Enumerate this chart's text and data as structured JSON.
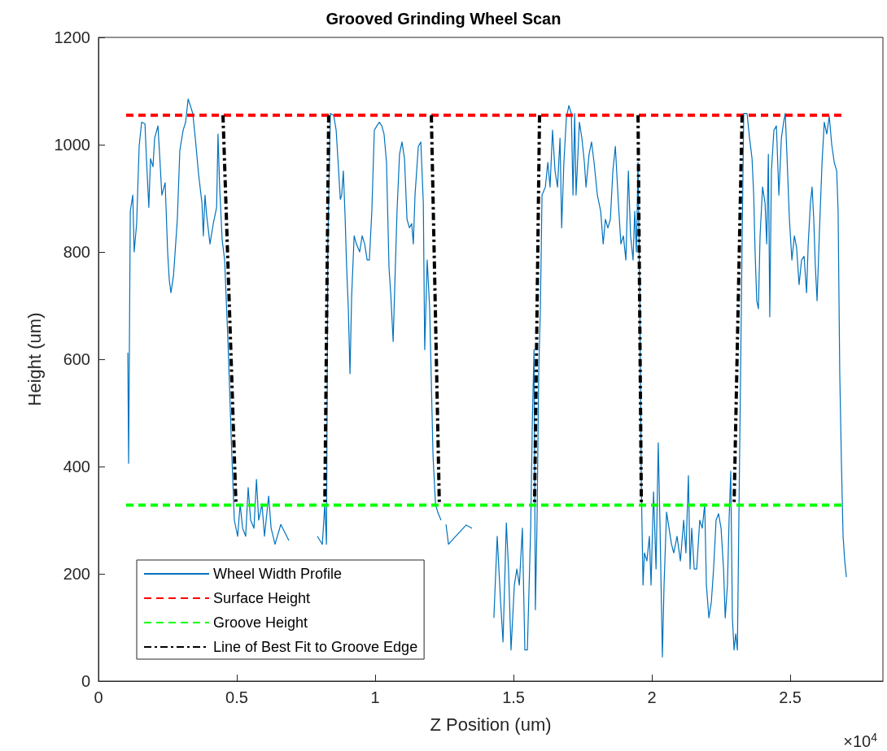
{
  "chart_data": {
    "type": "line",
    "title": "Grooved Grinding Wheel Scan",
    "xlabel": "Z Position (um)",
    "ylabel": "Height (um)",
    "annotations": [
      "×10$^{4}$"
    ],
    "xlim": [
      0,
      2.835
    ],
    "xticks": [
      0,
      0.5,
      1,
      1.5,
      2,
      2.5
    ],
    "ylim": [
      0,
      1200
    ],
    "yticks": [
      0,
      200,
      400,
      600,
      800,
      1000,
      1200
    ],
    "grid": false,
    "legend": "bottom left",
    "marker": "none",
    "series": [
      {
        "name": "Wheel Width Profile",
        "color": "#0072bd",
        "line_style": "solid",
        "x": [
          0.106,
          0.109,
          0.115,
          0.124,
          0.129,
          0.138,
          0.147,
          0.156,
          0.168,
          0.174,
          0.182,
          0.188,
          0.197,
          0.203,
          0.215,
          0.221,
          0.229,
          0.241,
          0.25,
          0.256,
          0.262,
          0.271,
          0.279,
          0.285,
          0.294,
          0.306,
          0.315,
          0.324,
          0.332,
          0.341,
          0.35,
          0.362,
          0.374,
          0.379,
          0.385,
          0.391,
          0.403,
          0.415,
          0.427,
          0.432,
          0.438,
          0.447,
          0.456,
          0.468,
          0.482,
          0.491,
          0.503,
          0.512,
          0.521,
          0.532,
          0.541,
          0.55,
          0.562,
          0.571,
          0.579,
          0.591,
          0.6,
          0.615,
          0.624,
          0.638,
          0.659,
          0.688,
          0.718,
          0.762,
          0.791,
          0.809,
          0.818,
          0.824,
          0.829,
          0.838,
          0.85,
          0.859,
          0.868,
          0.874,
          0.879,
          0.885,
          0.891,
          0.897,
          0.903,
          0.909,
          0.915,
          0.924,
          0.932,
          0.944,
          0.953,
          0.962,
          0.971,
          0.979,
          0.988,
          0.997,
          1.006,
          1.015,
          1.024,
          1.032,
          1.041,
          1.05,
          1.056,
          1.065,
          1.071,
          1.079,
          1.088,
          1.097,
          1.106,
          1.115,
          1.124,
          1.132,
          1.138,
          1.144,
          1.156,
          1.165,
          1.174,
          1.179,
          1.188,
          1.197,
          1.209,
          1.218,
          1.226,
          1.238,
          1.247,
          1.256,
          1.265,
          1.291,
          1.329,
          1.35,
          1.379,
          1.418,
          1.429,
          1.441,
          1.453,
          1.462,
          1.474,
          1.482,
          1.491,
          1.503,
          1.512,
          1.521,
          1.532,
          1.541,
          1.55,
          1.562,
          1.568,
          1.574,
          1.579,
          1.585,
          1.591,
          1.597,
          1.603,
          1.615,
          1.624,
          1.632,
          1.641,
          1.65,
          1.659,
          1.668,
          1.674,
          1.682,
          1.691,
          1.7,
          1.709,
          1.715,
          1.721,
          1.726,
          1.738,
          1.747,
          1.756,
          1.762,
          1.773,
          1.782,
          1.791,
          1.803,
          1.815,
          1.824,
          1.832,
          1.841,
          1.85,
          1.859,
          1.868,
          1.879,
          1.888,
          1.897,
          1.906,
          1.915,
          1.923,
          1.932,
          1.938,
          1.944,
          1.95,
          1.956,
          1.962,
          1.968,
          1.973,
          1.982,
          1.991,
          1.997,
          2.006,
          2.015,
          2.023,
          2.029,
          2.038,
          2.044,
          2.053,
          2.062,
          2.071,
          2.079,
          2.091,
          2.103,
          2.115,
          2.123,
          2.132,
          2.138,
          2.144,
          2.153,
          2.162,
          2.173,
          2.182,
          2.191,
          2.197,
          2.206,
          2.215,
          2.223,
          2.232,
          2.241,
          2.25,
          2.259,
          2.265,
          2.273,
          2.279,
          2.285,
          2.291,
          2.297,
          2.303,
          2.309,
          2.315,
          2.326,
          2.332,
          2.344,
          2.353,
          2.362,
          2.368,
          2.373,
          2.379,
          2.385,
          2.391,
          2.4,
          2.409,
          2.415,
          2.421,
          2.426,
          2.432,
          2.441,
          2.45,
          2.459,
          2.468,
          2.476,
          2.482,
          2.488,
          2.497,
          2.506,
          2.515,
          2.523,
          2.532,
          2.541,
          2.55,
          2.559,
          2.565,
          2.573,
          2.579,
          2.585,
          2.591,
          2.597,
          2.606,
          2.615,
          2.623,
          2.632,
          2.641,
          2.65,
          2.659,
          2.668,
          2.673,
          2.679,
          2.685,
          2.691,
          2.697,
          2.703
        ],
        "values": [
          612,
          406,
          876,
          906,
          800,
          853,
          997,
          1042,
          1039,
          967,
          883,
          974,
          959,
          1012,
          1035,
          982,
          906,
          929,
          800,
          747,
          724,
          755,
          815,
          861,
          989,
          1027,
          1042,
          1085,
          1073,
          1058,
          1012,
          944,
          891,
          830,
          906,
          868,
          815,
          853,
          883,
          1020,
          921,
          823,
          785,
          633,
          421,
          300,
          270,
          330,
          285,
          270,
          361,
          300,
          285,
          376,
          300,
          330,
          270,
          345,
          285,
          255,
          292,
          262,
          null,
          null,
          270,
          255,
          330,
          255,
          815,
          1058,
          1055,
          1027,
          951,
          898,
          906,
          951,
          870,
          770,
          694,
          573,
          718,
          830,
          815,
          800,
          830,
          815,
          785,
          785,
          876,
          1027,
          1035,
          1042,
          1035,
          1020,
          967,
          770,
          724,
          633,
          739,
          876,
          982,
          1005,
          974,
          861,
          845,
          853,
          815,
          906,
          997,
          1005,
          891,
          618,
          785,
          694,
          421,
          330,
          315,
          300,
          null,
          292,
          255,
          270,
          291,
          285,
          null,
          null,
          118,
          270,
          150,
          73,
          295,
          209,
          58,
          179,
          209,
          179,
          285,
          58,
          58,
          285,
          482,
          618,
          133,
          300,
          573,
          694,
          906,
          921,
          967,
          921,
          1027,
          951,
          921,
          1012,
          845,
          967,
          1050,
          1073,
          1058,
          906,
          1058,
          906,
          1042,
          1012,
          967,
          921,
          982,
          1005,
          967,
          906,
          876,
          815,
          861,
          845,
          861,
          951,
          997,
          891,
          815,
          830,
          785,
          951,
          830,
          785,
          876,
          800,
          967,
          724,
          361,
          179,
          239,
          224,
          270,
          179,
          353,
          209,
          444,
          300,
          45,
          179,
          315,
          285,
          255,
          239,
          270,
          224,
          300,
          239,
          383,
          209,
          285,
          209,
          209,
          300,
          285,
          330,
          179,
          118,
          148,
          209,
          300,
          312,
          285,
          209,
          118,
          179,
          300,
          391,
          118,
          58,
          88,
          58,
          330,
          815,
          1058,
          1058,
          1012,
          974,
          906,
          800,
          709,
          694,
          830,
          921,
          891,
          815,
          982,
          679,
          951,
          1027,
          1035,
          906,
          1012,
          1042,
          1058,
          982,
          861,
          785,
          830,
          808,
          739,
          785,
          792,
          724,
          815,
          891,
          921,
          861,
          770,
          709,
          845,
          967,
          1042,
          1020,
          1053,
          1000,
          967,
          951,
          876,
          573,
          406,
          270,
          224,
          194
        ]
      },
      {
        "name": "Surface Height",
        "color": "#ff0000",
        "line_style": "dashed",
        "x": [
          0.1,
          2.694
        ],
        "values": [
          1055,
          1055
        ]
      },
      {
        "name": "Groove Height",
        "color": "#00ff00",
        "line_style": "dashed",
        "x": [
          0.1,
          2.694
        ],
        "values": [
          328,
          328
        ]
      },
      {
        "name": "Line of Best Fit to Groove Edge",
        "color": "#000000",
        "line_style": "dashdot",
        "x": [
          0.45,
          0.497,
          null,
          0.832,
          0.818,
          null,
          1.203,
          1.232,
          null,
          1.594,
          1.576,
          null,
          1.95,
          1.962,
          null,
          2.326,
          2.297
        ],
        "values": [
          1055,
          328,
          null,
          1055,
          328,
          null,
          1055,
          328,
          null,
          1055,
          328,
          null,
          1055,
          328,
          null,
          1055,
          328
        ]
      }
    ]
  }
}
